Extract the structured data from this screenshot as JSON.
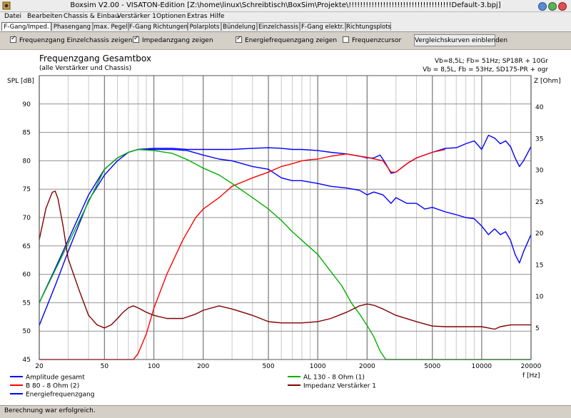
{
  "window": {
    "title": "Boxsim V2.00 - VISATON-Edition [Z:\\home\\linux\\Schreibtisch\\BoxSim\\Projekte\\!!!!!!!!!!!!!!!!!!!!!!!!!!!!!!!!!!!!Default-3.bpj]"
  },
  "menu": [
    {
      "label": "Datei",
      "x": 6
    },
    {
      "label": "Bearbeiten",
      "x": 38
    },
    {
      "label": "Chassis & Einbau",
      "x": 89
    },
    {
      "label": "Verstärker 1",
      "x": 164
    },
    {
      "label": "Optionen",
      "x": 219
    },
    {
      "label": "Extras",
      "x": 262
    },
    {
      "label": "Hilfe",
      "x": 294
    }
  ],
  "tabs": [
    {
      "label": "F-Gang/Imped.",
      "x": 2,
      "w": 70,
      "active": true
    },
    {
      "label": "Phasengang",
      "x": 72,
      "w": 58
    },
    {
      "label": "max. Pegel",
      "x": 130,
      "w": 50
    },
    {
      "label": "F-Gang Richtungen",
      "x": 180,
      "w": 83
    },
    {
      "label": "Polarplots",
      "x": 263,
      "w": 47
    },
    {
      "label": "Bündelung",
      "x": 310,
      "w": 50
    },
    {
      "label": "Einzelchassis",
      "x": 360,
      "w": 60
    },
    {
      "label": "F-Gang elektr.",
      "x": 420,
      "w": 64
    },
    {
      "label": "Richtungsplots",
      "x": 484,
      "w": 64
    }
  ],
  "options": {
    "einzelchassis": {
      "label": "Frequenzgang Einzelchassis zeigen",
      "checked": true
    },
    "impedanz": {
      "label": "Impedanzgang zeigen",
      "checked": true
    },
    "energie": {
      "label": "Energiefrequenzgang zeigen",
      "checked": true
    },
    "cursor": {
      "label": "Frequenzcursor",
      "checked": false
    },
    "compare_button": "Vergleichskurven einblenden"
  },
  "status": "Berechnung war erfolgreich.",
  "chart_data": {
    "type": "line",
    "title": "Frequenzgang Gesamtbox",
    "subtitle": "(alle Verstärker und Chassis)",
    "info_line1": "Vb=8,5L; Fb= 51Hz; SP18R + 10Gr",
    "info_line2": "Vb = 8,5L, Fb = 53Hz, SD175-PR + ogr",
    "ylabel": "SPL [dB]",
    "y2label": "Z [Ohm]",
    "xlabel": "f [Hz]",
    "x_scale": "log",
    "xlim": [
      20,
      20000
    ],
    "ylim": [
      45,
      95
    ],
    "y2lim": [
      0,
      45
    ],
    "x_ticks": [
      20,
      50,
      100,
      200,
      500,
      1000,
      2000,
      5000,
      10000,
      20000
    ],
    "x_tick_labels": [
      "20",
      "50",
      "100",
      "200",
      "500",
      "1000",
      "2000",
      "5000",
      "10000",
      "20000"
    ],
    "y_ticks": [
      45,
      50,
      55,
      60,
      65,
      70,
      75,
      80,
      85,
      90
    ],
    "y_tick_labels": [
      "45",
      "50",
      "55",
      "60",
      "65",
      "70",
      "75",
      "80",
      "85",
      "90"
    ],
    "y2_ticks": [
      5,
      10,
      15,
      20,
      25,
      30,
      35,
      40
    ],
    "y2_tick_labels": [
      "5",
      "10",
      "15",
      "20",
      "25",
      "30",
      "35",
      "40"
    ],
    "grid": true,
    "legend_placement": "bottom",
    "series": [
      {
        "name": "Amplitude gesamt",
        "color": "#0000ff",
        "axis": "left",
        "legend_col": 0,
        "legend_row": 0,
        "x": [
          20,
          25,
          30,
          40,
          50,
          60,
          70,
          80,
          100,
          130,
          160,
          200,
          250,
          300,
          400,
          500,
          600,
          700,
          800,
          1000,
          1200,
          1500,
          1800,
          2000,
          2200,
          2500,
          2800,
          3000,
          3500,
          4000,
          4500,
          5000,
          6000,
          7000,
          8000,
          9000,
          10000,
          11000,
          12000,
          13000,
          14000,
          15000,
          16000,
          17000,
          18000,
          20000
        ],
        "y": [
          55,
          61,
          66,
          74,
          78.5,
          80.5,
          81.5,
          82,
          82,
          82,
          81.8,
          81,
          80.3,
          80,
          79,
          78.5,
          77,
          76.5,
          76.5,
          76,
          75.5,
          75.2,
          74.8,
          74,
          74.5,
          74,
          72.5,
          73.5,
          72.5,
          72.5,
          71.5,
          71.8,
          71,
          70.5,
          70,
          69.8,
          68.5,
          67,
          68,
          67,
          67.5,
          66,
          63.5,
          62,
          64,
          67
        ]
      },
      {
        "name": "Energiefrequenzgang",
        "color": "#0000ff",
        "axis": "left",
        "legend_col": 0,
        "legend_row": 2,
        "x": [
          20,
          25,
          30,
          40,
          50,
          60,
          70,
          80,
          100,
          130,
          160,
          200,
          250,
          300,
          400,
          500,
          600,
          700,
          800,
          1000,
          1200,
          1500,
          1800,
          2000,
          2200,
          2400,
          2600,
          2800,
          3000,
          3500,
          4000,
          5000,
          6000,
          7000,
          8000,
          9000,
          10000,
          11000,
          12000,
          13000,
          14000,
          15000,
          16000,
          17000,
          18000,
          20000
        ],
        "y": [
          51,
          58,
          64,
          73,
          77.5,
          80,
          81.5,
          82,
          82.2,
          82.2,
          82,
          82,
          82,
          82,
          82.2,
          82.3,
          82.2,
          82,
          82,
          81.8,
          81.5,
          81.2,
          80.8,
          80.5,
          80.5,
          81,
          79.5,
          77.8,
          78,
          79.5,
          80.5,
          81.5,
          82.2,
          82.3,
          83,
          83.5,
          82,
          84.5,
          84,
          83,
          83.5,
          82.5,
          80.5,
          79,
          80,
          82.5
        ]
      },
      {
        "name": "B 80 - 8 Ohm (2)",
        "color": "#ff0000",
        "axis": "left",
        "legend_col": 0,
        "legend_row": 1,
        "x": [
          20,
          40,
          60,
          75,
          80,
          90,
          100,
          120,
          150,
          180,
          200,
          250,
          300,
          400,
          500,
          600,
          700,
          800,
          900,
          1000,
          1200,
          1500,
          2000,
          2500,
          2800,
          3000,
          3500,
          4000,
          5000,
          6000
        ],
        "y": [
          45,
          45,
          45,
          45,
          46,
          49.5,
          54,
          60,
          66,
          70,
          71.5,
          73.5,
          75.5,
          77,
          78,
          79,
          79.5,
          80,
          80.2,
          80.3,
          80.8,
          81.2,
          80.6,
          80,
          78,
          78,
          79.5,
          80.5,
          81.5,
          82
        ]
      },
      {
        "name": "AL 130 - 8 Ohm (1)",
        "color": "#00b000",
        "axis": "left",
        "legend_col": 1,
        "legend_row": 0,
        "x": [
          20,
          50,
          60,
          70,
          80,
          100,
          130,
          160,
          200,
          250,
          300,
          400,
          500,
          600,
          700,
          800,
          1000,
          1200,
          1400,
          1600,
          1800,
          2000,
          2200,
          2400,
          2600,
          2800,
          3000,
          5000,
          10000,
          20000
        ],
        "y": [
          55,
          78.5,
          80.5,
          81.5,
          82,
          81.8,
          81.3,
          80.2,
          78.7,
          77.5,
          76,
          73.5,
          71.5,
          69.5,
          67.5,
          66,
          63.5,
          60.5,
          58,
          55,
          53,
          51,
          49,
          46.5,
          45,
          45,
          45,
          45,
          45,
          45
        ]
      },
      {
        "name": "Impedanz Verstärker 1",
        "color": "#800000",
        "axis": "right",
        "legend_col": 1,
        "legend_row": 1,
        "x": [
          20,
          22,
          24,
          25,
          26,
          28,
          30,
          35,
          40,
          45,
          50,
          55,
          60,
          65,
          70,
          75,
          80,
          90,
          100,
          120,
          150,
          180,
          200,
          250,
          300,
          400,
          500,
          600,
          800,
          1000,
          1200,
          1500,
          1800,
          2000,
          2200,
          2500,
          3000,
          4000,
          5000,
          6000,
          8000,
          10000,
          11000,
          12000,
          13000,
          15000,
          20000
        ],
        "y": [
          19,
          24,
          26.5,
          26.7,
          25.5,
          21,
          16,
          11,
          7,
          5.5,
          5,
          5.5,
          6.5,
          7.5,
          8.2,
          8.5,
          8.2,
          7.5,
          7,
          6.5,
          6.5,
          7.2,
          7.8,
          8.5,
          8,
          7,
          6,
          5.8,
          5.8,
          6,
          6.5,
          7.5,
          8.5,
          8.8,
          8.6,
          8,
          7,
          6,
          5.3,
          5.2,
          5.2,
          5.2,
          5,
          4.8,
          5.2,
          5.5,
          5.5
        ]
      }
    ]
  }
}
